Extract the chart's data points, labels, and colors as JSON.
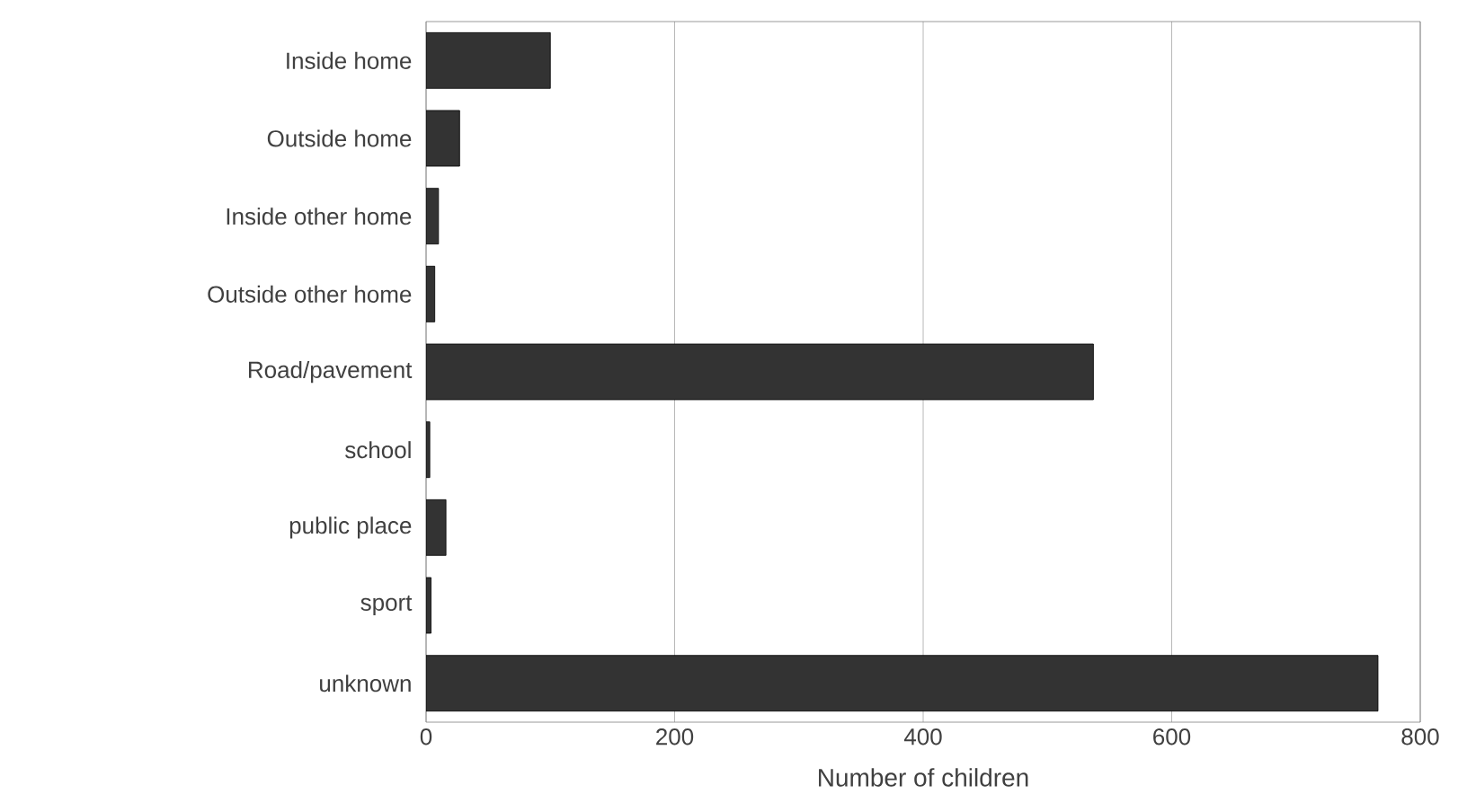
{
  "chart_data": {
    "type": "bar",
    "orientation": "horizontal",
    "xlabel": "Number of children",
    "categories": [
      "Inside home",
      "Outside home",
      "Inside other home",
      "Outside other home",
      "Road/pavement",
      "school",
      "public place",
      "sport",
      "unknown"
    ],
    "values": [
      100,
      27,
      10,
      7,
      537,
      3,
      16,
      4,
      766
    ],
    "color": "#333333",
    "xlim": [
      0,
      800
    ],
    "xticks": [
      0,
      200,
      400,
      600,
      800
    ],
    "grid": "x"
  }
}
